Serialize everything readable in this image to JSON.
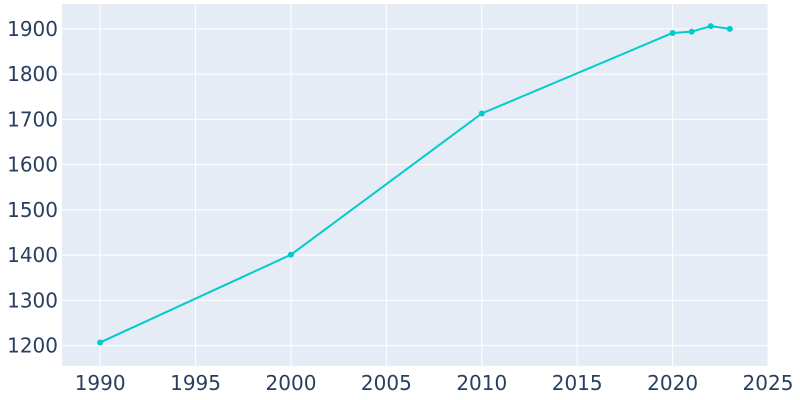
{
  "chart_data": {
    "type": "line",
    "x": [
      1990,
      2000,
      2010,
      2020,
      2021,
      2022,
      2023
    ],
    "series": [
      {
        "values": [
          1207,
          1401,
          1713,
          1891,
          1894,
          1906,
          1900
        ]
      }
    ],
    "xlim": [
      1988,
      2025
    ],
    "ylim": [
      1155,
      1955
    ],
    "xticks": [
      1990,
      1995,
      2000,
      2005,
      2010,
      2015,
      2020,
      2025
    ],
    "yticks": [
      1200,
      1300,
      1400,
      1500,
      1600,
      1700,
      1800,
      1900
    ],
    "grid": true,
    "colors": {
      "line": "#00cccc",
      "plot_background": "#e5ecf6",
      "grid": "#ffffff",
      "tick_text": "#2a3f5f"
    }
  }
}
